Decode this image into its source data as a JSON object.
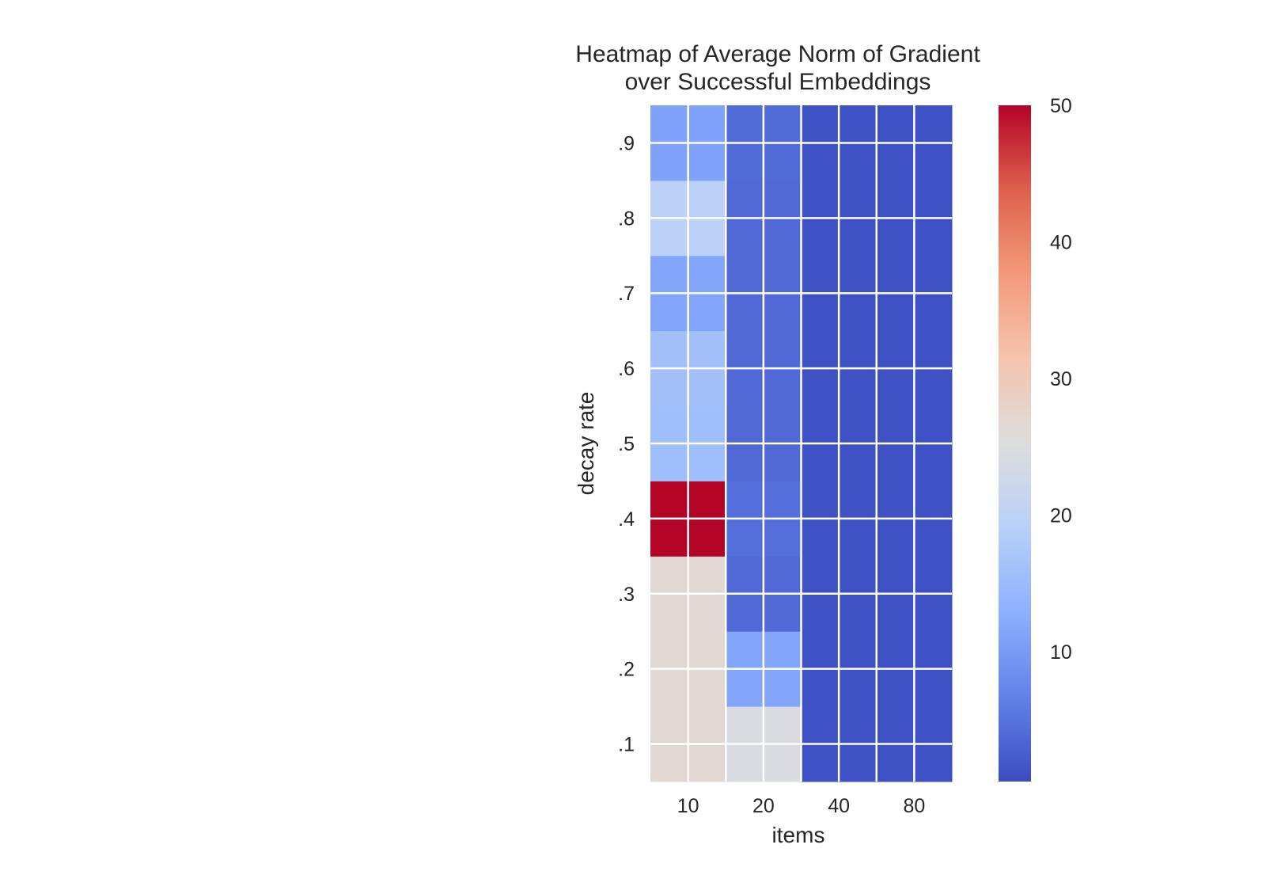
{
  "chart_data": {
    "type": "heatmap",
    "title": [
      "Heatmap of Average Norm of Gradient",
      "over Successful Embeddings"
    ],
    "xlabel": "items",
    "ylabel": "decay rate",
    "x_categories": [
      "10",
      "20",
      "40",
      "80"
    ],
    "y_categories": [
      ".1",
      ".2",
      ".3",
      ".4",
      ".5",
      ".6",
      ".7",
      ".8",
      ".9"
    ],
    "values": [
      [
        26.5,
        24.5,
        1.2,
        1.2
      ],
      [
        26.5,
        11.5,
        1.2,
        1.2
      ],
      [
        26.5,
        3.8,
        1.2,
        1.2
      ],
      [
        50.0,
        4.5,
        1.2,
        1.2
      ],
      [
        15.5,
        3.8,
        1.2,
        1.2
      ],
      [
        16.0,
        3.8,
        1.2,
        1.2
      ],
      [
        11.5,
        3.8,
        1.2,
        1.2
      ],
      [
        19.5,
        3.8,
        1.2,
        1.2
      ],
      [
        11.0,
        4.0,
        1.2,
        1.2
      ]
    ],
    "colorbar": {
      "range": [
        0.5,
        50
      ],
      "ticks": [
        10,
        20,
        30,
        40,
        50
      ],
      "colormap": "coolwarm"
    },
    "grid": true
  }
}
